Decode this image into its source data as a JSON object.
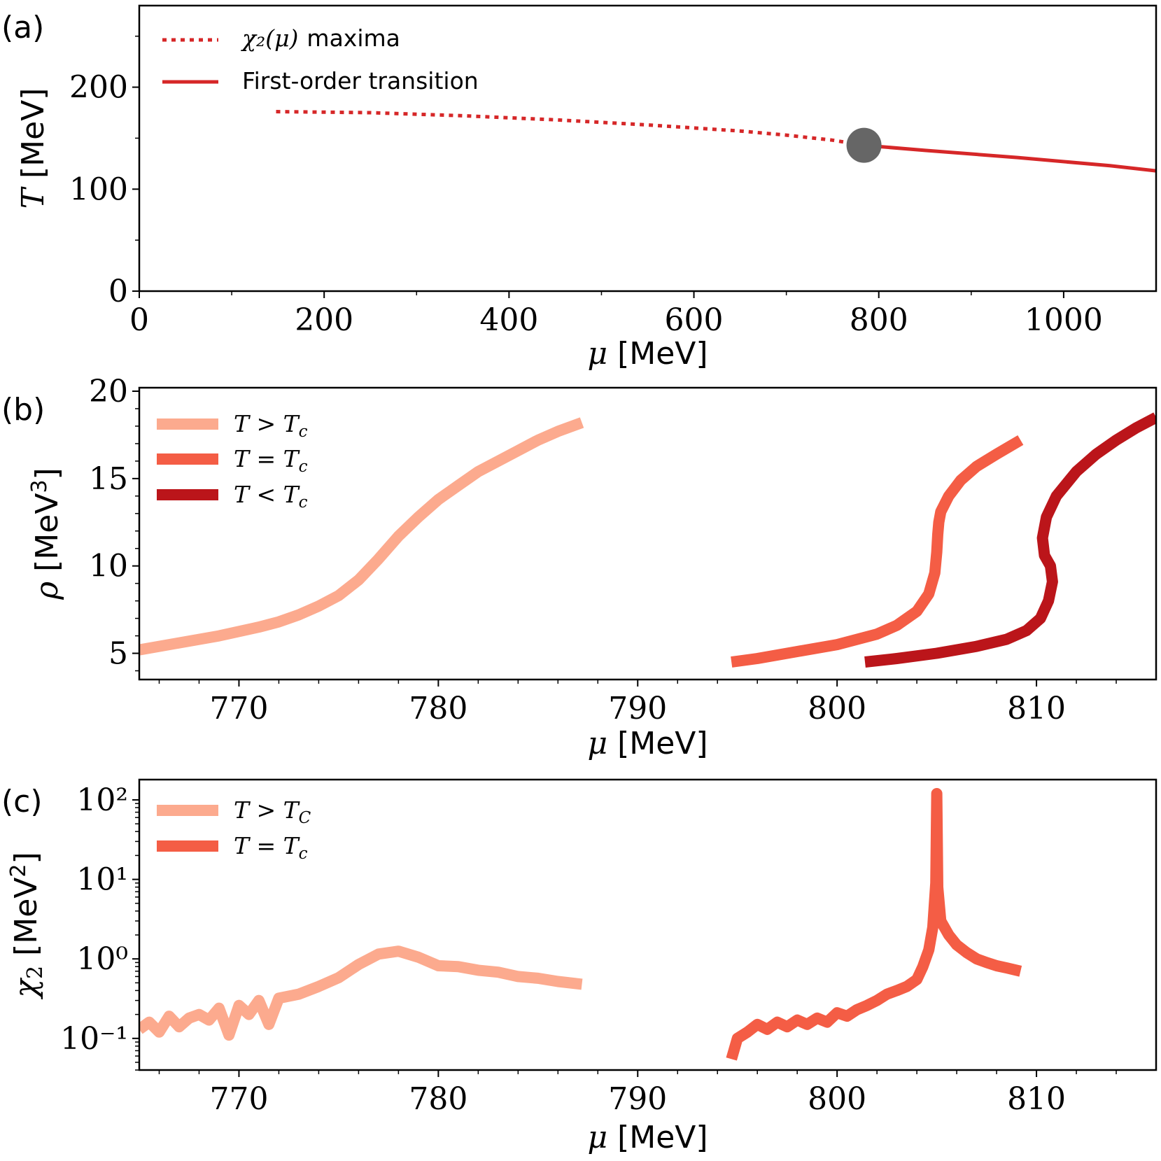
{
  "chart_data": [
    {
      "panel": "(a)",
      "type": "line",
      "xlabel": "μ [MeV]",
      "ylabel": "T [MeV]",
      "xlim": [
        0,
        1100
      ],
      "ylim": [
        0,
        280
      ],
      "xticks": [
        0,
        200,
        400,
        600,
        800,
        1000
      ],
      "yticks": [
        0,
        100,
        200
      ],
      "series": [
        {
          "name": "χ2(μ) maxima",
          "style": "dotted",
          "color": "#d62728",
          "x": [
            148,
            250,
            350,
            450,
            550,
            650,
            700,
            750,
            784
          ],
          "y": [
            176,
            175,
            172,
            168,
            163,
            157,
            153,
            148,
            143
          ]
        },
        {
          "name": "First-order transition",
          "style": "solid",
          "color": "#d62728",
          "x": [
            784,
            850,
            950,
            1050,
            1100
          ],
          "y": [
            143,
            138,
            131,
            123,
            118
          ]
        }
      ],
      "critical_point": {
        "x": 784,
        "y": 143,
        "color": "#666666"
      },
      "legend": {
        "position": "top-left",
        "entries": [
          {
            "label_math": "χ₂(μ)",
            "label_text": "maxima"
          },
          {
            "label_math": "",
            "label_text": "First-order transition"
          }
        ]
      }
    },
    {
      "panel": "(b)",
      "type": "line",
      "xlabel": "μ [MeV]",
      "ylabel": "ρ [MeV³]",
      "xlim": [
        765,
        816
      ],
      "ylim": [
        3.5,
        20.2
      ],
      "xticks": [
        770,
        780,
        790,
        800,
        810
      ],
      "yticks": [
        5,
        10,
        15,
        20
      ],
      "series": [
        {
          "name": "T > Tc",
          "color": "#fcaa8e",
          "x": [
            765,
            766,
            767,
            768,
            769,
            770,
            771,
            772,
            773,
            774,
            775,
            776,
            777,
            778,
            779,
            780,
            781,
            782,
            783,
            784,
            785,
            786,
            787.2
          ],
          "y": [
            5.2,
            5.4,
            5.6,
            5.8,
            6.0,
            6.25,
            6.5,
            6.8,
            7.2,
            7.7,
            8.3,
            9.2,
            10.4,
            11.7,
            12.8,
            13.8,
            14.6,
            15.4,
            16.0,
            16.6,
            17.2,
            17.7,
            18.2
          ]
        },
        {
          "name": "T = Tc",
          "color": "#f45d45",
          "x": [
            794.7,
            796,
            798,
            800,
            802,
            803,
            804,
            804.6,
            804.9,
            805.0,
            805.05,
            805.1,
            805.2,
            805.6,
            806.2,
            807,
            808,
            809.2
          ],
          "y": [
            4.5,
            4.7,
            5.1,
            5.5,
            6.1,
            6.6,
            7.4,
            8.4,
            9.6,
            10.8,
            11.8,
            12.5,
            13.1,
            14.0,
            14.9,
            15.7,
            16.4,
            17.2
          ]
        },
        {
          "name": "T < Tc",
          "color": "#bb151a",
          "x": [
            801.4,
            803,
            805,
            807,
            808.5,
            809.5,
            810.2,
            810.6,
            810.8,
            810.7,
            810.4,
            810.3,
            810.5,
            811,
            812,
            813,
            814,
            815,
            816
          ],
          "y": [
            4.5,
            4.7,
            5.0,
            5.4,
            5.8,
            6.3,
            7.0,
            8.0,
            9.1,
            10.0,
            10.6,
            11.6,
            12.8,
            14.0,
            15.4,
            16.4,
            17.2,
            17.9,
            18.5
          ]
        }
      ],
      "legend": {
        "position": "top-left",
        "entries": [
          "T > Tc",
          "T = Tc",
          "T < Tc"
        ]
      }
    },
    {
      "panel": "(c)",
      "type": "line",
      "xlabel": "μ [MeV]",
      "ylabel": "χ2 [MeV²]",
      "yscale": "log",
      "xlim": [
        765,
        816
      ],
      "ylim": [
        0.04,
        180
      ],
      "xticks": [
        770,
        780,
        790,
        800,
        810
      ],
      "yticks": [
        0.1,
        1,
        10,
        100
      ],
      "ytick_labels": [
        "10⁻¹",
        "10⁰",
        "10¹",
        "10²"
      ],
      "series": [
        {
          "name": "T > TC",
          "color": "#fcaa8e",
          "x": [
            765,
            765.5,
            766,
            766.5,
            767,
            767.5,
            768,
            768.5,
            769,
            769.5,
            770,
            770.5,
            771,
            771.5,
            772,
            773,
            774,
            775,
            776,
            777,
            778,
            779,
            780,
            781,
            782,
            783,
            784,
            785,
            786,
            787.2
          ],
          "y": [
            0.13,
            0.16,
            0.12,
            0.19,
            0.14,
            0.18,
            0.2,
            0.17,
            0.24,
            0.11,
            0.26,
            0.2,
            0.3,
            0.15,
            0.32,
            0.36,
            0.45,
            0.58,
            0.85,
            1.15,
            1.25,
            1.05,
            0.82,
            0.8,
            0.72,
            0.68,
            0.6,
            0.57,
            0.52,
            0.48
          ]
        },
        {
          "name": "T = Tc",
          "color": "#f45d45",
          "x": [
            794.7,
            795,
            795.5,
            796,
            796.5,
            797,
            797.5,
            798,
            798.5,
            799,
            799.5,
            800,
            800.5,
            801,
            801.5,
            802,
            802.5,
            803,
            803.5,
            804,
            804.3,
            804.6,
            804.8,
            804.95,
            805.0,
            805.05,
            805.2,
            805.6,
            806,
            806.5,
            807,
            807.5,
            808,
            808.5,
            809.2
          ],
          "y": [
            0.055,
            0.1,
            0.12,
            0.15,
            0.13,
            0.16,
            0.14,
            0.17,
            0.15,
            0.18,
            0.16,
            0.21,
            0.19,
            0.23,
            0.26,
            0.3,
            0.36,
            0.4,
            0.45,
            0.55,
            0.8,
            1.3,
            2.5,
            9.0,
            120,
            8.0,
            3.0,
            2.0,
            1.5,
            1.2,
            1.0,
            0.9,
            0.82,
            0.77,
            0.7
          ]
        }
      ],
      "legend": {
        "position": "top-left",
        "entries": [
          "T > TC",
          "T = Tc"
        ]
      }
    }
  ],
  "panel_labels": [
    "(a)",
    "(b)",
    "(c)"
  ]
}
